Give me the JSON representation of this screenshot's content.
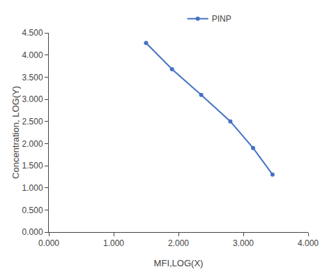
{
  "chart_data": {
    "type": "line",
    "x_label": "MFI,LOG(X)",
    "y_label": "Concentration, LOG(Y)",
    "x": [
      1.5,
      1.9,
      2.35,
      2.8,
      3.15,
      3.45
    ],
    "series": [
      {
        "name": "PINP",
        "color": "#4472C4",
        "marker": "circle",
        "line_style": "solid",
        "values": [
          4.27,
          3.68,
          3.1,
          2.5,
          1.9,
          1.3
        ]
      }
    ],
    "xlim": [
      0.0,
      4.0
    ],
    "ylim": [
      0.0,
      4.5
    ],
    "xticks": [
      {
        "value": 0.0,
        "label": "0.000"
      },
      {
        "value": 1.0,
        "label": "1.000"
      },
      {
        "value": 2.0,
        "label": "2.000"
      },
      {
        "value": 3.0,
        "label": "3.000"
      },
      {
        "value": 4.0,
        "label": "4.000"
      }
    ],
    "yticks": [
      {
        "value": 0.0,
        "label": "0.000"
      },
      {
        "value": 0.5,
        "label": "0.500"
      },
      {
        "value": 1.0,
        "label": "1.000"
      },
      {
        "value": 1.5,
        "label": "1.500"
      },
      {
        "value": 2.0,
        "label": "2.000"
      },
      {
        "value": 2.5,
        "label": "2.500"
      },
      {
        "value": 3.0,
        "label": "3.000"
      },
      {
        "value": 3.5,
        "label": "3.500"
      },
      {
        "value": 4.0,
        "label": "4.000"
      },
      {
        "value": 4.5,
        "label": "4.500"
      }
    ],
    "grid": false,
    "legend": "top"
  }
}
